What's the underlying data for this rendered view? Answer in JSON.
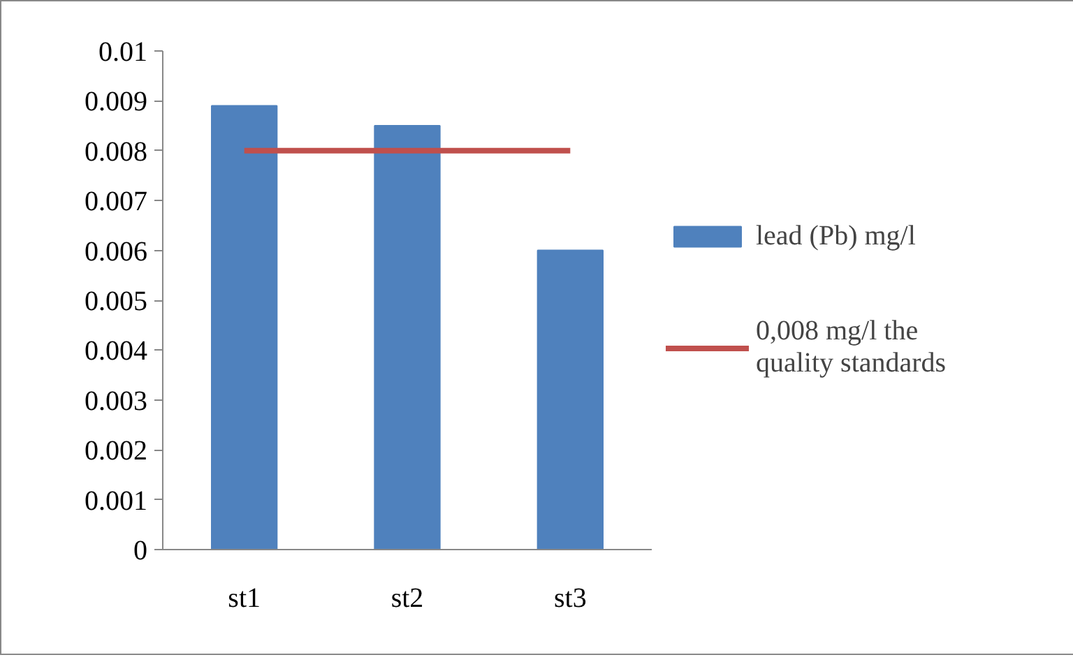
{
  "chart_data": {
    "type": "bar",
    "categories": [
      "st1",
      "st2",
      "st3"
    ],
    "series": [
      {
        "name": "lead (Pb) mg/l",
        "color": "#4f81bd",
        "values": [
          0.0089,
          0.0085,
          0.006
        ]
      },
      {
        "name": "0,008 mg/l the quality standards",
        "type": "line",
        "color": "#c0504d",
        "values": [
          0.008,
          0.008,
          0.008
        ]
      }
    ],
    "ylim": [
      0,
      0.01
    ],
    "yticks": [
      {
        "value": 0,
        "label": "0"
      },
      {
        "value": 0.001,
        "label": "0.001"
      },
      {
        "value": 0.002,
        "label": "0.002"
      },
      {
        "value": 0.003,
        "label": "0.003"
      },
      {
        "value": 0.004,
        "label": "0.004"
      },
      {
        "value": 0.005,
        "label": "0.005"
      },
      {
        "value": 0.006,
        "label": "0.006"
      },
      {
        "value": 0.007,
        "label": "0.007"
      },
      {
        "value": 0.008,
        "label": "0.008"
      },
      {
        "value": 0.009,
        "label": "0.009"
      },
      {
        "value": 0.01,
        "label": "0.01"
      }
    ],
    "grid": false,
    "legend": "right"
  }
}
